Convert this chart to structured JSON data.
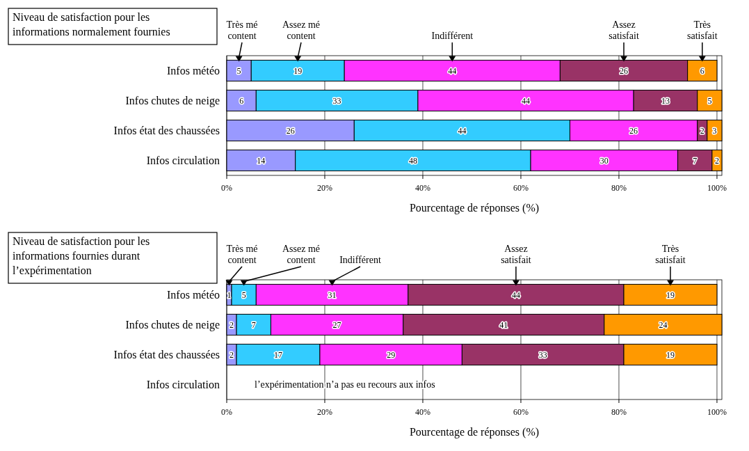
{
  "chart_data": [
    {
      "type": "bar",
      "orientation": "horizontal",
      "stacked": true,
      "title": "Niveau de satisfaction pour les informations normalement fournies",
      "xlabel": "Pourcentage de réponses (%)",
      "categories": [
        "Infos météo",
        "Infos chutes de neige",
        "Infos état des chaussées",
        "Infos circulation"
      ],
      "series": [
        {
          "name": "Très mé content",
          "color": "#9999ff",
          "values": [
            5,
            6,
            26,
            14
          ]
        },
        {
          "name": "Assez mé content",
          "color": "#33ccff",
          "values": [
            19,
            33,
            44,
            48
          ]
        },
        {
          "name": "Indifférent",
          "color": "#ff33ff",
          "values": [
            44,
            44,
            26,
            30
          ]
        },
        {
          "name": "Assez satisfait",
          "color": "#993366",
          "values": [
            26,
            13,
            2,
            7
          ]
        },
        {
          "name": "Très satisfait",
          "color": "#ff9900",
          "values": [
            6,
            5,
            3,
            2
          ]
        }
      ],
      "xlim": [
        0,
        101
      ],
      "xticks": [
        {
          "value": 0,
          "label": "0%"
        },
        {
          "value": 20,
          "label": "20%"
        },
        {
          "value": 40,
          "label": "40%"
        },
        {
          "value": 60,
          "label": "60%"
        },
        {
          "value": 80,
          "label": "80%"
        },
        {
          "value": 100,
          "label": "100%"
        }
      ],
      "grid": "x",
      "legend": "top",
      "data_labels": true
    },
    {
      "type": "bar",
      "orientation": "horizontal",
      "stacked": true,
      "title": "Niveau de satisfaction pour les informations fournies durant l’expérimentation",
      "xlabel": "Pourcentage de réponses (%)",
      "categories": [
        "Infos météo",
        "Infos chutes de neige",
        "Infos état des chaussées",
        "Infos circulation"
      ],
      "series": [
        {
          "name": "Très mé content",
          "color": "#9999ff",
          "values": [
            1,
            2,
            2,
            null
          ]
        },
        {
          "name": "Assez mé content",
          "color": "#33ccff",
          "values": [
            5,
            7,
            17,
            null
          ]
        },
        {
          "name": "Indifférent",
          "color": "#ff33ff",
          "values": [
            31,
            27,
            29,
            null
          ]
        },
        {
          "name": "Assez satisfait",
          "color": "#993366",
          "values": [
            44,
            41,
            33,
            null
          ]
        },
        {
          "name": "Très satisfait",
          "color": "#ff9900",
          "values": [
            19,
            24,
            19,
            null
          ]
        }
      ],
      "annotations": [
        "l’expérimentation n’a pas eu recours aux infos"
      ],
      "xlim": [
        0,
        101
      ],
      "xticks": [
        {
          "value": 0,
          "label": "0%"
        },
        {
          "value": 20,
          "label": "20%"
        },
        {
          "value": 40,
          "label": "40%"
        },
        {
          "value": 60,
          "label": "60%"
        },
        {
          "value": 80,
          "label": "80%"
        },
        {
          "value": 100,
          "label": "100%"
        }
      ],
      "grid": "x",
      "legend": "top",
      "data_labels": true
    }
  ]
}
